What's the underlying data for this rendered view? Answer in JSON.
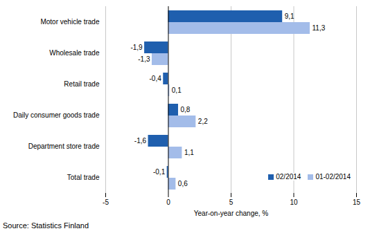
{
  "chart_data": {
    "type": "bar",
    "orientation": "horizontal",
    "categories": [
      "Motor vehicle trade",
      "Wholesale trade",
      "Retail trade",
      "Daily consumer goods trade",
      "Department store trade",
      "Total trade"
    ],
    "series": [
      {
        "name": "02/2014",
        "color": "#1f5fae",
        "values": [
          9.1,
          -1.9,
          -0.4,
          0.8,
          -1.6,
          -0.1
        ],
        "value_labels": [
          "9,1",
          "-1,9",
          "-0,4",
          "0,8",
          "-1,6",
          "-0,1"
        ]
      },
      {
        "name": "01-02/2014",
        "color": "#a3bce9",
        "values": [
          11.3,
          -1.3,
          0.1,
          2.2,
          1.1,
          0.6
        ],
        "value_labels": [
          "11,3",
          "-1,3",
          "0,1",
          "2,2",
          "1,1",
          "0,6"
        ]
      }
    ],
    "xlabel": "Year-on-year change, %",
    "xlim": [
      -5,
      15
    ],
    "xticks": [
      -5,
      0,
      5,
      10,
      15
    ],
    "grid": true,
    "data_labels": true,
    "legend": "lower right",
    "caption": "Source: Statistics Finland"
  }
}
